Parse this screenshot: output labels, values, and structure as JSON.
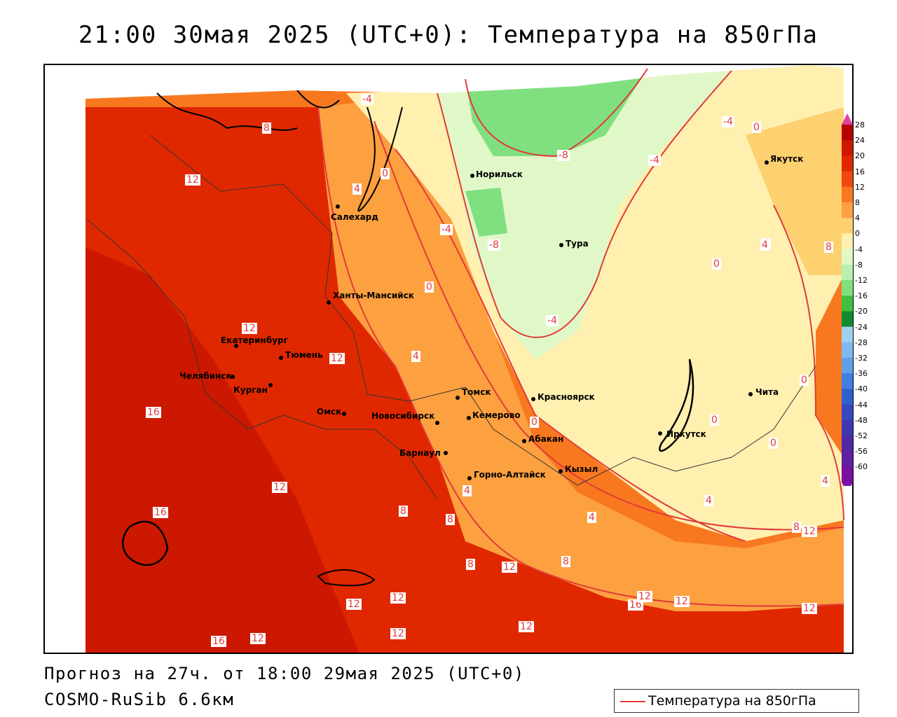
{
  "title": "21:00 30мая 2025 (UTC+0): Температура на 850гПа",
  "footer": {
    "forecast": "Прогноз на 27ч. от 18:00 29мая 2025 (UTC+0)",
    "model": "COSMO-RuSib 6.6км"
  },
  "legend": {
    "label": "Температура на 850гПа",
    "line_color": "#e23a3a"
  },
  "colorbar": {
    "ticks": [
      "28",
      "24",
      "20",
      "16",
      "12",
      "8",
      "4",
      "0",
      "-4",
      "-8",
      "-12",
      "-16",
      "-20",
      "-24",
      "-28",
      "-32",
      "-36",
      "-40",
      "-44",
      "-48",
      "-52",
      "-56",
      "-60"
    ],
    "colors": [
      "#b40000",
      "#cc1800",
      "#e02800",
      "#f04810",
      "#f87820",
      "#fca040",
      "#fdd070",
      "#fff0b0",
      "#e0f8c8",
      "#b8f0b0",
      "#80e080",
      "#40c040",
      "#108a30",
      "#a0d0f0",
      "#80b8f0",
      "#60a0e8",
      "#4080e0",
      "#3060d0",
      "#3848c0",
      "#4038b0",
      "#5028a8",
      "#6020a0",
      "#7810a0"
    ]
  },
  "cities": [
    {
      "name": "Норильск"
    },
    {
      "name": "Якутск"
    },
    {
      "name": "Салехард"
    },
    {
      "name": "Тура"
    },
    {
      "name": "Ханты-Мансийск"
    },
    {
      "name": "Екатеринбург"
    },
    {
      "name": "Тюмень"
    },
    {
      "name": "Челябинск"
    },
    {
      "name": "Курган"
    },
    {
      "name": "Омск"
    },
    {
      "name": "Томск"
    },
    {
      "name": "Красноярск"
    },
    {
      "name": "Новосибирск"
    },
    {
      "name": "Кемерово"
    },
    {
      "name": "Барнаул"
    },
    {
      "name": "Абакан"
    },
    {
      "name": "Горно-Алтайск"
    },
    {
      "name": "Кызыл"
    },
    {
      "name": "Иркутск"
    },
    {
      "name": "Чита"
    }
  ],
  "contour_labels": [
    "-4",
    "8",
    "12",
    "4",
    "0",
    "-8",
    "-4",
    "0",
    "-4",
    "-8",
    "-4",
    "0",
    "4",
    "8",
    "12",
    "4",
    "-4",
    "0",
    "12",
    "4",
    "16",
    "0",
    "0",
    "0",
    "0",
    "4",
    "12",
    "8",
    "8",
    "16",
    "4",
    "4",
    "8",
    "4",
    "12",
    "8",
    "8",
    "12",
    "12",
    "16",
    "12",
    "12",
    "12",
    "16",
    "12",
    "12",
    "12",
    "12"
  ]
}
